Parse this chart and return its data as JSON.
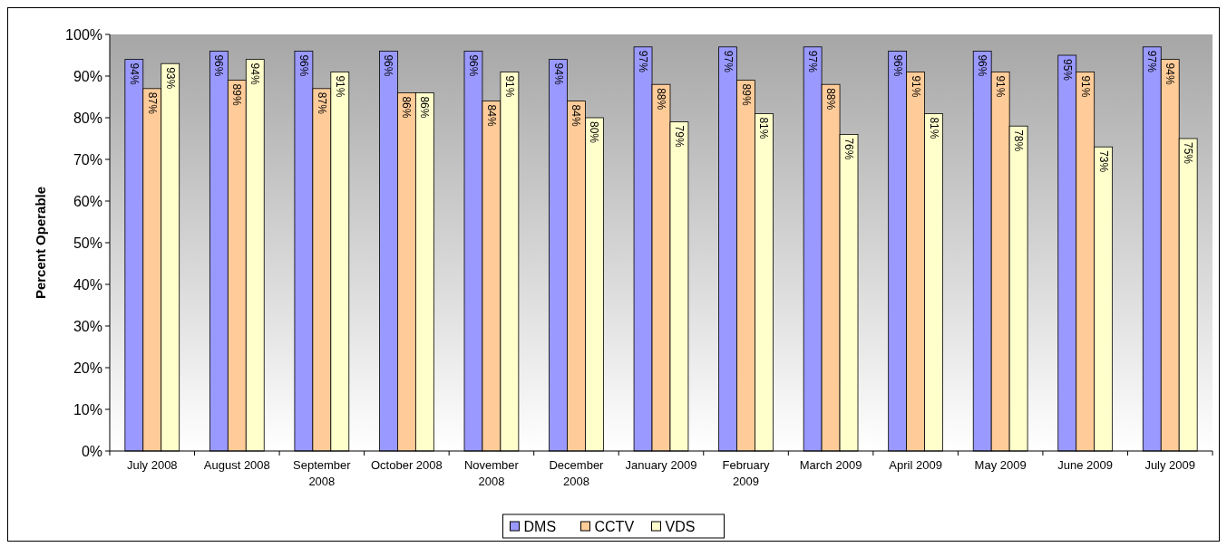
{
  "chart_data": {
    "type": "bar",
    "ylabel": "Percent Operable",
    "categories": [
      "July 2008",
      "August 2008",
      "September 2008",
      "October 2008",
      "November 2008",
      "December 2008",
      "January 2009",
      "February 2009",
      "March 2009",
      "April 2009",
      "May 2009",
      "June 2009",
      "July 2009"
    ],
    "series": [
      {
        "name": "DMS",
        "color": "#9999ff",
        "values": [
          94,
          96,
          96,
          96,
          96,
          94,
          97,
          97,
          97,
          96,
          96,
          95,
          97
        ],
        "value_labels": [
          "94%",
          "96%",
          "96%",
          "96%",
          "96%",
          "94%",
          "97%",
          "97%",
          "97%",
          "96%",
          "96%",
          "95%",
          "97%"
        ]
      },
      {
        "name": "CCTV",
        "color": "#ffcc99",
        "values": [
          87,
          89,
          87,
          86,
          84,
          84,
          88,
          89,
          88,
          91,
          91,
          91,
          94
        ],
        "value_labels": [
          "87%",
          "89%",
          "87%",
          "86%",
          "84%",
          "84%",
          "88%",
          "89%",
          "88%",
          "91%",
          "91%",
          "91%",
          "94%"
        ]
      },
      {
        "name": "VDS",
        "color": "#ffffcc",
        "values": [
          93,
          94,
          91,
          86,
          91,
          80,
          79,
          81,
          76,
          81,
          78,
          73,
          75
        ],
        "value_labels": [
          "93%",
          "94%",
          "91%",
          "86%",
          "91%",
          "80%",
          "79%",
          "81%",
          "76%",
          "81%",
          "78%",
          "73%",
          "75%"
        ]
      }
    ],
    "ylim": [
      0,
      100
    ],
    "yticks": [
      {
        "value": 0,
        "label": "0%"
      },
      {
        "value": 10,
        "label": "10%"
      },
      {
        "value": 20,
        "label": "20%"
      },
      {
        "value": 30,
        "label": "30%"
      },
      {
        "value": 40,
        "label": "40%"
      },
      {
        "value": 50,
        "label": "50%"
      },
      {
        "value": 60,
        "label": "60%"
      },
      {
        "value": 70,
        "label": "70%"
      },
      {
        "value": 80,
        "label": "80%"
      },
      {
        "value": 90,
        "label": "90%"
      },
      {
        "value": 100,
        "label": "100%"
      }
    ],
    "legend": "bottom",
    "grid": false
  }
}
